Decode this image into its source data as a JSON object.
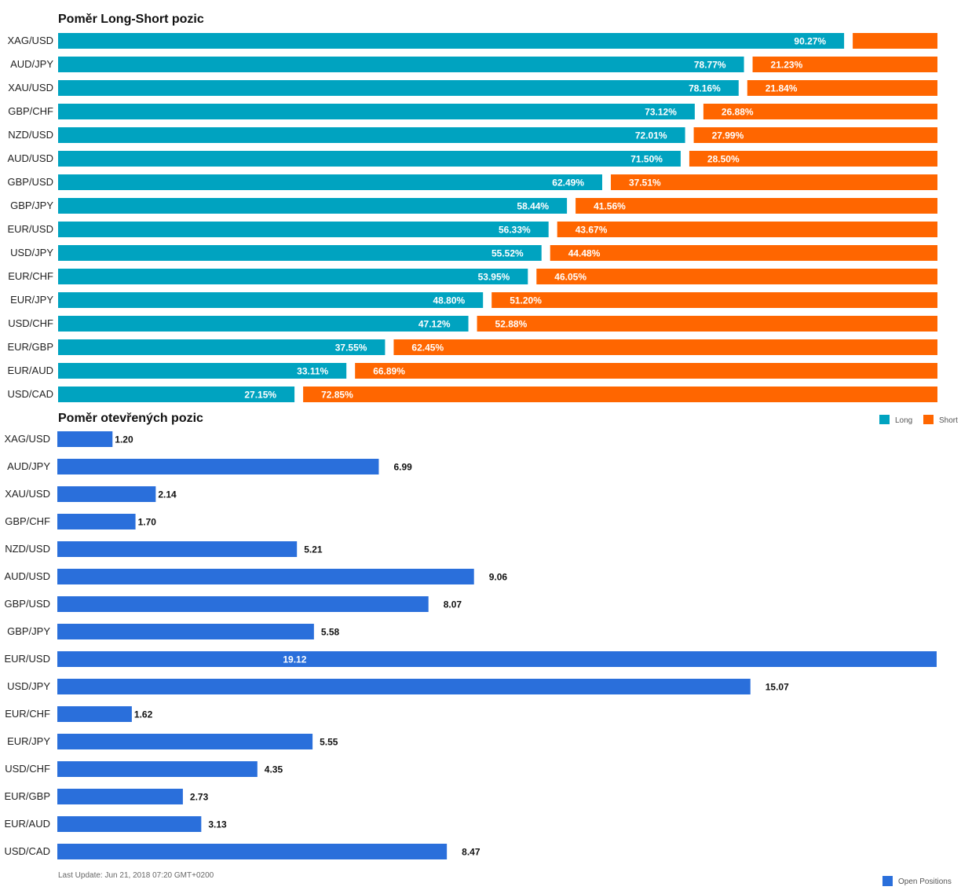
{
  "footer": {
    "last_update": "Last Update: Jun 21, 2018 07:20 GMT+0200"
  },
  "chart_data": [
    {
      "type": "bar",
      "stacked": true,
      "orientation": "horizontal",
      "title": "Poměr Long-Short pozic",
      "categories": [
        "XAG/USD",
        "AUD/JPY",
        "XAU/USD",
        "GBP/CHF",
        "NZD/USD",
        "AUD/USD",
        "GBP/USD",
        "GBP/JPY",
        "EUR/USD",
        "USD/JPY",
        "EUR/CHF",
        "EUR/JPY",
        "USD/CHF",
        "EUR/GBP",
        "EUR/AUD",
        "USD/CAD"
      ],
      "series": [
        {
          "name": "Long",
          "color": "#00a3c0",
          "values": [
            90.27,
            78.77,
            78.16,
            73.12,
            72.01,
            71.5,
            62.49,
            58.44,
            56.33,
            55.52,
            53.95,
            48.8,
            47.12,
            37.55,
            33.11,
            27.15
          ],
          "labels": [
            "90.27%",
            "78.77%",
            "78.16%",
            "73.12%",
            "72.01%",
            "71.50%",
            "62.49%",
            "58.44%",
            "56.33%",
            "55.52%",
            "53.95%",
            "48.80%",
            "47.12%",
            "37.55%",
            "33.11%",
            "27.15%"
          ]
        },
        {
          "name": "Short",
          "color": "#ff6600",
          "values": [
            9.73,
            21.23,
            21.84,
            26.88,
            27.99,
            28.5,
            37.51,
            41.56,
            43.67,
            44.48,
            46.05,
            51.2,
            52.88,
            62.45,
            66.89,
            72.85
          ],
          "labels": [
            "",
            "21.23%",
            "21.84%",
            "26.88%",
            "27.99%",
            "28.50%",
            "37.51%",
            "41.56%",
            "43.67%",
            "44.48%",
            "46.05%",
            "51.20%",
            "52.88%",
            "62.45%",
            "66.89%",
            "72.85%"
          ]
        }
      ],
      "legend": "bottom-right"
    },
    {
      "type": "bar",
      "orientation": "horizontal",
      "title": "Poměr otevřených pozic",
      "categories": [
        "XAG/USD",
        "AUD/JPY",
        "XAU/USD",
        "GBP/CHF",
        "NZD/USD",
        "AUD/USD",
        "GBP/USD",
        "GBP/JPY",
        "EUR/USD",
        "USD/JPY",
        "EUR/CHF",
        "EUR/JPY",
        "USD/CHF",
        "EUR/GBP",
        "EUR/AUD",
        "USD/CAD"
      ],
      "series": [
        {
          "name": "Open Positions",
          "color": "#2a6fdb",
          "values": [
            1.2,
            6.99,
            2.14,
            1.7,
            5.21,
            9.06,
            8.07,
            5.58,
            19.12,
            15.07,
            1.62,
            5.55,
            4.35,
            2.73,
            3.13,
            8.47
          ],
          "labels": [
            "1.20",
            "6.99",
            "2.14",
            "1.70",
            "5.21",
            "9.06",
            "8.07",
            "5.58",
            "19.12",
            "15.07",
            "1.62",
            "5.55",
            "4.35",
            "2.73",
            "3.13",
            "8.47"
          ]
        }
      ],
      "legend": "bottom-right"
    }
  ]
}
